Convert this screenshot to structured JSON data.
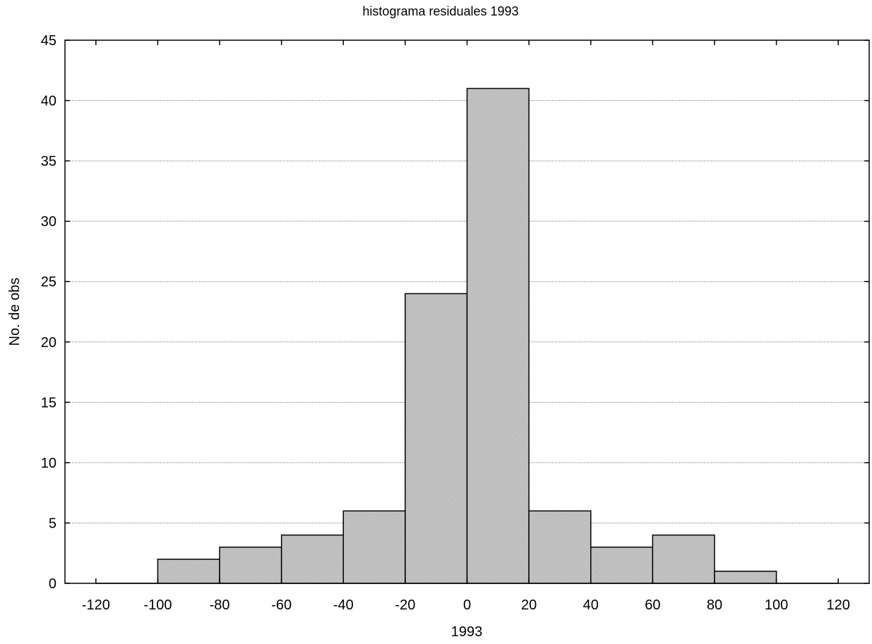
{
  "chart_data": {
    "type": "bar",
    "title": "histograma residuales 1993",
    "xlabel": "1993",
    "ylabel": "No. de obs",
    "xlim": [
      -130,
      130
    ],
    "ylim": [
      0,
      45
    ],
    "x_ticks": [
      "-120",
      "-100",
      "-80",
      "-60",
      "-40",
      "-20",
      "0",
      "20",
      "40",
      "60",
      "80",
      "100",
      "120"
    ],
    "y_ticks": [
      "0",
      "5",
      "10",
      "15",
      "20",
      "25",
      "30",
      "35",
      "40",
      "45"
    ],
    "grid": "horizontal dotted",
    "bins": [
      {
        "start": -120,
        "end": -100,
        "value": 0
      },
      {
        "start": -100,
        "end": -80,
        "value": 2
      },
      {
        "start": -80,
        "end": -60,
        "value": 3
      },
      {
        "start": -60,
        "end": -40,
        "value": 4
      },
      {
        "start": -40,
        "end": -20,
        "value": 6
      },
      {
        "start": -20,
        "end": 0,
        "value": 24
      },
      {
        "start": 0,
        "end": 20,
        "value": 41
      },
      {
        "start": 20,
        "end": 40,
        "value": 6
      },
      {
        "start": 40,
        "end": 60,
        "value": 3
      },
      {
        "start": 60,
        "end": 80,
        "value": 4
      },
      {
        "start": 80,
        "end": 100,
        "value": 1
      },
      {
        "start": 100,
        "end": 120,
        "value": 0
      }
    ],
    "bar_color": "#c8c8c8"
  }
}
